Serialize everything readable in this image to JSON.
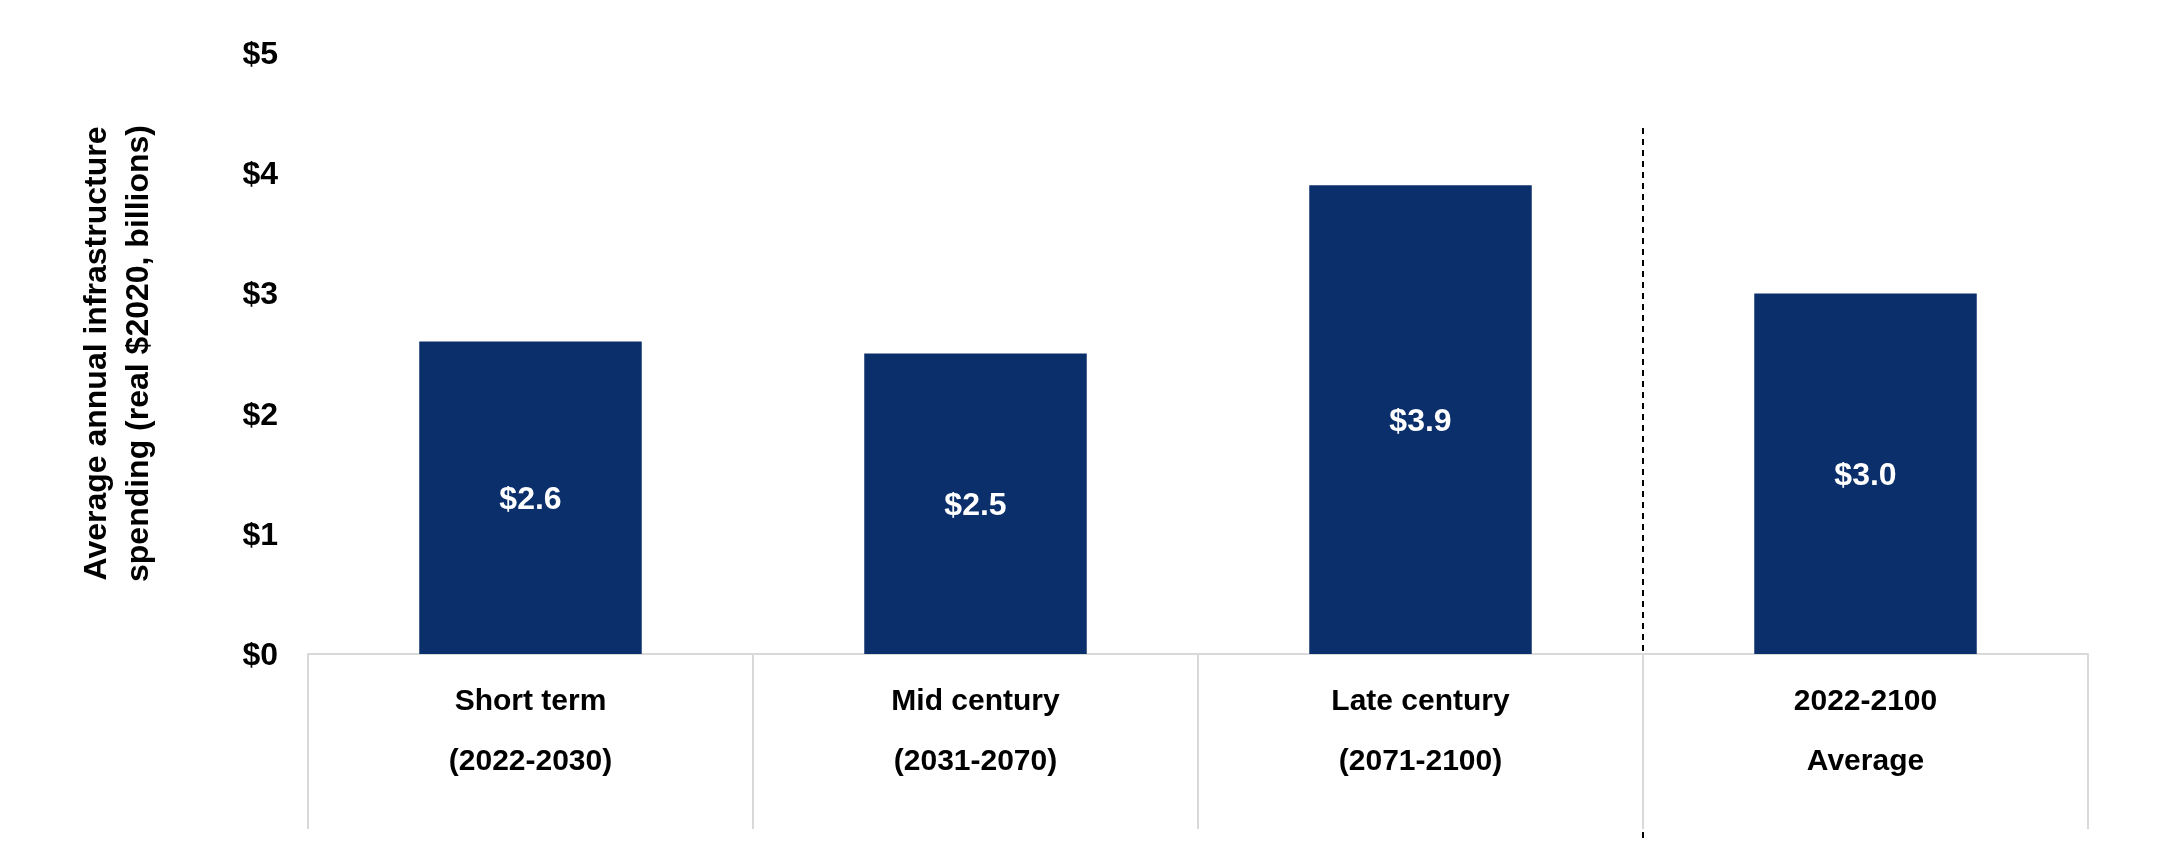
{
  "chart_data": {
    "type": "bar",
    "ylabel": "Average annual infrastructure\nspending (real $2020, billions)",
    "categories": [
      "Short term\n\n(2022-2030)",
      "Mid century\n\n(2031-2070)",
      "Late century\n\n(2071-2100)",
      "2022-2100\n\nAverage"
    ],
    "values": [
      2.6,
      2.5,
      3.9,
      3.0
    ],
    "value_labels": [
      "$2.6",
      "$2.5",
      "$3.9",
      "$3.0"
    ],
    "color": "#0b2f6b",
    "ylim": [
      0,
      5
    ],
    "yticks": [
      {
        "value": 0,
        "label": "$0"
      },
      {
        "value": 1,
        "label": "$1"
      },
      {
        "value": 2,
        "label": "$2"
      },
      {
        "value": 3,
        "label": "$3"
      },
      {
        "value": 4,
        "label": "$4"
      },
      {
        "value": 5,
        "label": "$5"
      }
    ],
    "grid": "x"
  }
}
